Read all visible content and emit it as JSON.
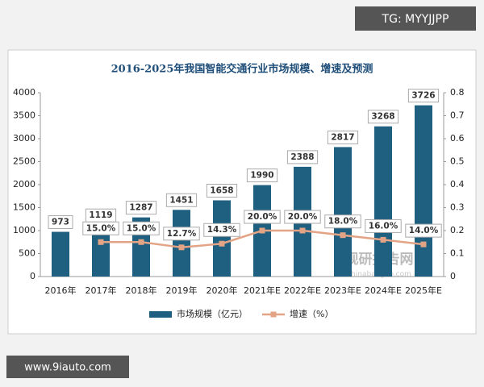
{
  "chart_data": {
    "type": "combo",
    "title": "2016-2025年我国智能交通行业市场规模、增速及预测",
    "categories": [
      "2016年",
      "2017年",
      "2018年",
      "2019年",
      "2020年",
      "2021年E",
      "2022年E",
      "2023年E",
      "2024年E",
      "2025年E"
    ],
    "series": [
      {
        "name": "市场规模（亿元）",
        "type": "bar",
        "color": "#1f5f80",
        "axis": "y",
        "values": [
          973,
          1119,
          1287,
          1451,
          1658,
          1990,
          2388,
          2817,
          3268,
          3726
        ]
      },
      {
        "name": "增速（%）",
        "type": "line",
        "color": "#e3a486",
        "axis": "y2",
        "values": [
          null,
          0.15,
          0.15,
          0.127,
          0.143,
          0.2,
          0.2,
          0.18,
          0.16,
          0.14
        ],
        "value_labels": [
          null,
          "15.0%",
          "15.0%",
          "12.7%",
          "14.3%",
          "20.0%",
          "20.0%",
          "18.0%",
          "16.0%",
          "14.0%"
        ]
      }
    ],
    "ylim": [
      0,
      4000
    ],
    "yticks": [
      0,
      500,
      1000,
      1500,
      2000,
      2500,
      3000,
      3500,
      4000
    ],
    "y2lim": [
      0,
      0.8
    ],
    "y2ticks": [
      0,
      0.1,
      0.2,
      0.3,
      0.4,
      0.5,
      0.6,
      0.7,
      0.8
    ],
    "legend": "bottom",
    "annotations": [
      "TG: MYYJJPP",
      "www.9iauto.com",
      "观研报告网",
      "chinabaogao.com"
    ]
  }
}
